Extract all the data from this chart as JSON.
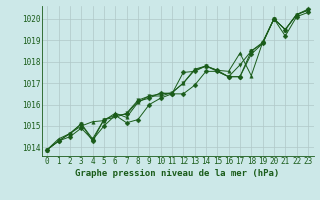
{
  "background_color": "#cce8e8",
  "plot_bg_color": "#cce8e8",
  "grid_color": "#b0c8c8",
  "line_color": "#1a5c1a",
  "marker_color": "#1a5c1a",
  "xlabel": "Graphe pression niveau de la mer (hPa)",
  "xlabel_fontsize": 6.5,
  "tick_fontsize": 5.5,
  "ylim": [
    1013.6,
    1020.6
  ],
  "xlim": [
    -0.5,
    23.5
  ],
  "yticks": [
    1014,
    1015,
    1016,
    1017,
    1018,
    1019,
    1020
  ],
  "xticks": [
    0,
    1,
    2,
    3,
    4,
    5,
    6,
    7,
    8,
    9,
    10,
    11,
    12,
    13,
    14,
    15,
    16,
    17,
    18,
    19,
    20,
    21,
    22,
    23
  ],
  "series": [
    [
      1013.9,
      1014.3,
      1014.5,
      1014.9,
      1014.35,
      1015.0,
      1015.5,
      1015.15,
      1015.3,
      1016.0,
      1016.3,
      1016.5,
      1016.5,
      1016.9,
      1017.55,
      1017.55,
      1017.3,
      1017.3,
      1018.35,
      1018.85,
      1020.0,
      1019.2,
      1020.1,
      1020.3
    ],
    [
      1013.9,
      1014.4,
      1014.65,
      1015.0,
      1015.2,
      1015.25,
      1015.6,
      1015.4,
      1016.1,
      1016.4,
      1016.5,
      1016.55,
      1017.0,
      1017.65,
      1017.8,
      1017.6,
      1017.55,
      1018.4,
      1017.35,
      1018.9,
      1020.0,
      1019.5,
      1020.2,
      1020.4
    ],
    [
      1013.9,
      1014.3,
      1014.65,
      1015.1,
      1014.3,
      1015.3,
      1015.5,
      1015.55,
      1016.15,
      1016.3,
      1016.55,
      1016.5,
      1017.5,
      1017.55,
      1017.8,
      1017.6,
      1017.3,
      1017.3,
      1018.5,
      1018.9,
      1020.0,
      1019.5,
      1020.2,
      1020.45
    ],
    [
      1013.9,
      1014.3,
      1014.65,
      1015.1,
      1014.4,
      1015.3,
      1015.4,
      1015.6,
      1016.2,
      1016.4,
      1016.4,
      1016.55,
      1017.0,
      1017.6,
      1017.8,
      1017.55,
      1017.3,
      1017.85,
      1018.5,
      1018.85,
      1020.0,
      1019.5,
      1020.2,
      1020.4
    ]
  ],
  "markers": [
    "D",
    "^",
    "D",
    "v"
  ],
  "markersizes": [
    2.5,
    2.5,
    2.5,
    2.5
  ],
  "linewidth": 0.7
}
